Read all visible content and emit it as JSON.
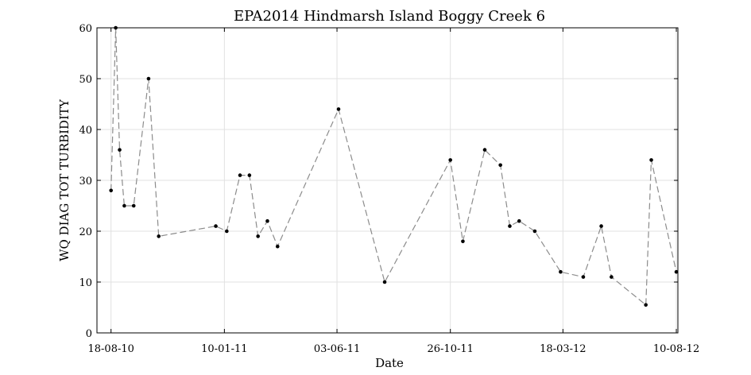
{
  "chart_data": {
    "type": "line",
    "title": "EPA2014 Hindmarsh Island Boggy Creek 6",
    "xlabel": "Date",
    "ylabel": "WQ DIAG TOT TURBIDITY",
    "ylim": [
      0,
      60
    ],
    "y_ticks": [
      0,
      10,
      20,
      30,
      40,
      50,
      60
    ],
    "xlim": [
      "2010-07-31",
      "2012-08-12"
    ],
    "x_ticks": [
      {
        "date": "2010-08-18",
        "label": "18-08-10"
      },
      {
        "date": "2011-01-10",
        "label": "10-01-11"
      },
      {
        "date": "2011-06-03",
        "label": "03-06-11"
      },
      {
        "date": "2011-10-26",
        "label": "26-10-11"
      },
      {
        "date": "2012-03-18",
        "label": "18-03-12"
      },
      {
        "date": "2012-08-10",
        "label": "10-08-12"
      }
    ],
    "grid": true,
    "line_color": "#8c8c8c",
    "marker_color": "#000000",
    "series": [
      {
        "points": [
          {
            "x": "2010-08-18",
            "y": 28
          },
          {
            "x": "2010-08-24",
            "y": 60
          },
          {
            "x": "2010-08-29",
            "y": 36
          },
          {
            "x": "2010-09-04",
            "y": 25
          },
          {
            "x": "2010-09-16",
            "y": 25
          },
          {
            "x": "2010-10-05",
            "y": 50
          },
          {
            "x": "2010-10-18",
            "y": 19
          },
          {
            "x": "2010-12-30",
            "y": 21
          },
          {
            "x": "2011-01-13",
            "y": 20
          },
          {
            "x": "2011-01-30",
            "y": 31
          },
          {
            "x": "2011-02-11",
            "y": 31
          },
          {
            "x": "2011-02-22",
            "y": 19
          },
          {
            "x": "2011-03-06",
            "y": 22
          },
          {
            "x": "2011-03-19",
            "y": 17
          },
          {
            "x": "2011-06-05",
            "y": 44
          },
          {
            "x": "2011-08-03",
            "y": 10
          },
          {
            "x": "2011-10-26",
            "y": 34
          },
          {
            "x": "2011-11-11",
            "y": 18
          },
          {
            "x": "2011-12-09",
            "y": 36
          },
          {
            "x": "2011-12-29",
            "y": 33
          },
          {
            "x": "2012-01-10",
            "y": 21
          },
          {
            "x": "2012-01-22",
            "y": 22
          },
          {
            "x": "2012-02-11",
            "y": 20
          },
          {
            "x": "2012-03-15",
            "y": 12
          },
          {
            "x": "2012-04-13",
            "y": 11
          },
          {
            "x": "2012-05-06",
            "y": 21
          },
          {
            "x": "2012-05-19",
            "y": 11
          },
          {
            "x": "2012-07-02",
            "y": 5.5
          },
          {
            "x": "2012-07-09",
            "y": 34
          },
          {
            "x": "2012-08-10",
            "y": 12
          }
        ]
      }
    ]
  }
}
